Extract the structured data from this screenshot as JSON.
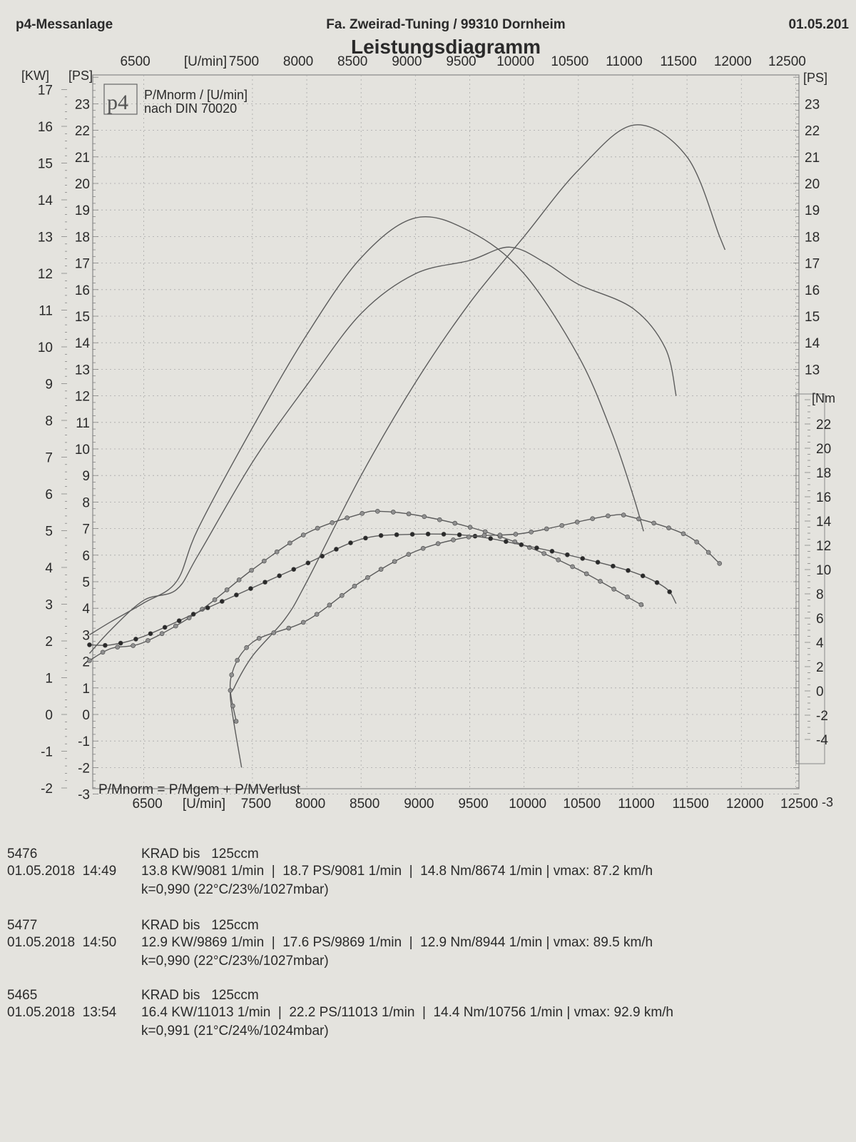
{
  "header": {
    "left": "p4-Messanlage",
    "center": "Fa. Zweirad-Tuning / 99310 Dornheim",
    "right": "01.05.201"
  },
  "chart_data": {
    "type": "line",
    "title": "Leistungsdiagramm",
    "logo_text": "p4",
    "legend_line1": "P/Mnorm / [U/min]",
    "legend_line2": "nach DIN 70020",
    "formula": "P/Mnorm = P/Mgem + P/MVerlust",
    "x_unit": "[U/min]",
    "x_ticks": [
      6500,
      7500,
      8000,
      8500,
      9000,
      9500,
      10000,
      10500,
      11000,
      11500,
      12000,
      12500
    ],
    "xlim": [
      6030,
      12530
    ],
    "kw_axis": {
      "label": "[KW]",
      "ticks": [
        17,
        16,
        15,
        14,
        13,
        12,
        11,
        10,
        9,
        8,
        7,
        6,
        5,
        4,
        3,
        2,
        1,
        0,
        -1,
        -2
      ]
    },
    "ps_axis": {
      "label": "[PS]",
      "ticks": [
        23,
        22,
        21,
        20,
        19,
        18,
        17,
        16,
        15,
        14,
        13,
        12,
        11,
        10,
        9,
        8,
        7,
        6,
        5,
        4,
        3,
        2,
        1,
        0,
        -1,
        -2,
        -3
      ]
    },
    "ps_axis_right": {
      "label": "[PS]",
      "ticks": [
        23,
        22,
        21,
        20,
        19,
        18,
        17,
        16,
        15,
        14,
        13
      ]
    },
    "nm_axis": {
      "label": "[Nm",
      "ticks": [
        22,
        20,
        18,
        16,
        14,
        12,
        10,
        8,
        6,
        4,
        2,
        0,
        -2,
        -4
      ],
      "bottom_label": "-3"
    },
    "ylim_ps": [
      -3,
      24
    ],
    "grid": true,
    "series": [
      {
        "name": "5476",
        "power_ps": [
          [
            6000,
            3.0
          ],
          [
            6200,
            3.5
          ],
          [
            6500,
            4.2
          ],
          [
            6800,
            5.0
          ],
          [
            7000,
            7.0
          ],
          [
            7500,
            10.8
          ],
          [
            8000,
            14.3
          ],
          [
            8500,
            17.2
          ],
          [
            9000,
            18.7
          ],
          [
            9500,
            18.2
          ],
          [
            10000,
            16.6
          ],
          [
            10500,
            13.5
          ],
          [
            10800,
            10.7
          ],
          [
            11000,
            8.3
          ],
          [
            11100,
            6.9
          ]
        ],
        "torque_nm": [
          [
            6000,
            2.5
          ],
          [
            6200,
            3.5
          ],
          [
            6500,
            4.0
          ],
          [
            7000,
            6.5
          ],
          [
            7500,
            10.0
          ],
          [
            8000,
            13.0
          ],
          [
            8500,
            14.6
          ],
          [
            8674,
            14.8
          ],
          [
            9000,
            14.5
          ],
          [
            9500,
            13.5
          ],
          [
            10000,
            12.0
          ],
          [
            10500,
            10.0
          ],
          [
            11000,
            7.5
          ],
          [
            11100,
            7.0
          ]
        ]
      },
      {
        "name": "5477",
        "power_ps": [
          [
            6000,
            2.3
          ],
          [
            6200,
            3.2
          ],
          [
            6500,
            4.3
          ],
          [
            6800,
            4.7
          ],
          [
            7000,
            6.0
          ],
          [
            7500,
            9.5
          ],
          [
            8000,
            12.4
          ],
          [
            8500,
            15.1
          ],
          [
            9000,
            16.6
          ],
          [
            9500,
            17.1
          ],
          [
            9869,
            17.6
          ],
          [
            10200,
            17.0
          ],
          [
            10500,
            16.2
          ],
          [
            11000,
            15.3
          ],
          [
            11300,
            13.8
          ],
          [
            11400,
            12.0
          ]
        ],
        "torque_nm": [
          [
            6000,
            3.8
          ],
          [
            6200,
            3.8
          ],
          [
            6500,
            4.5
          ],
          [
            7000,
            6.5
          ],
          [
            7500,
            8.5
          ],
          [
            8000,
            10.5
          ],
          [
            8500,
            12.5
          ],
          [
            8944,
            12.9
          ],
          [
            9500,
            12.8
          ],
          [
            10000,
            12.0
          ],
          [
            10500,
            11.0
          ],
          [
            11000,
            9.8
          ],
          [
            11300,
            8.5
          ],
          [
            11400,
            7.2
          ]
        ]
      },
      {
        "name": "5465",
        "power_ps": [
          [
            7400,
            -2.0
          ],
          [
            7300,
            0.5
          ],
          [
            7330,
            1.0
          ],
          [
            7500,
            2.2
          ],
          [
            7800,
            3.6
          ],
          [
            8000,
            5.0
          ],
          [
            8500,
            9.0
          ],
          [
            9000,
            12.5
          ],
          [
            9500,
            15.5
          ],
          [
            10000,
            18.0
          ],
          [
            10500,
            20.5
          ],
          [
            11013,
            22.2
          ],
          [
            11500,
            21.0
          ],
          [
            11800,
            18.0
          ],
          [
            11850,
            17.5
          ]
        ],
        "torque_nm": [
          [
            7350,
            -2.5
          ],
          [
            7300,
            1.0
          ],
          [
            7500,
            4.0
          ],
          [
            8000,
            5.8
          ],
          [
            8500,
            9.0
          ],
          [
            9000,
            11.5
          ],
          [
            9500,
            12.7
          ],
          [
            10000,
            13.0
          ],
          [
            10756,
            14.4
          ],
          [
            11000,
            14.3
          ],
          [
            11500,
            12.8
          ],
          [
            11800,
            10.5
          ]
        ]
      }
    ]
  },
  "info": {
    "rows": [
      {
        "id": "5476",
        "date_time": "01.05.2018  14:49",
        "vehicle": "KRAD bis   125ccm",
        "stats": "13.8 KW/9081 1/min  |  18.7 PS/9081 1/min  |  14.8 Nm/8674 1/min | vmax: 87.2 km/h",
        "conditions": "k=0,990 (22°C/23%/1027mbar)"
      },
      {
        "id": "5477",
        "date_time": "01.05.2018  14:50",
        "vehicle": "KRAD bis   125ccm",
        "stats": "12.9 KW/9869 1/min  |  17.6 PS/9869 1/min  |  12.9 Nm/8944 1/min | vmax: 89.5 km/h",
        "conditions": "k=0,990 (22°C/23%/1027mbar)"
      },
      {
        "id": "5465",
        "date_time": "01.05.2018  13:54",
        "vehicle": "KRAD bis   125ccm",
        "stats": "16.4 KW/11013 1/min  |  22.2 PS/11013 1/min  |  14.4 Nm/10756 1/min | vmax: 92.9 km/h",
        "conditions": "k=0,991 (21°C/24%/1024mbar)"
      }
    ]
  },
  "colors": {
    "line": "#5c5c5c",
    "marker_dark": "#2a2a2a",
    "marker_light": "#909090",
    "grid": "#a8a8a8",
    "paper": "#e4e3de"
  }
}
